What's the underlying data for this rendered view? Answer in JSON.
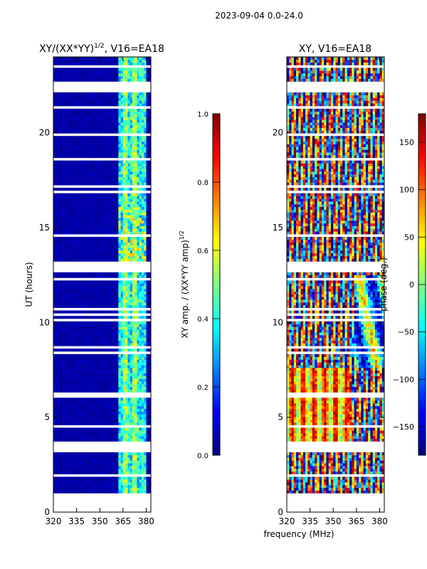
{
  "figure": {
    "suptitle": "2023-09-04 0.0-24.0",
    "xlabel": "frequency (MHz)"
  },
  "colors": {
    "jet": [
      "#00007f",
      "#0000ff",
      "#007fff",
      "#00ffff",
      "#7fff7f",
      "#ffff00",
      "#ff7f00",
      "#ff0000",
      "#7f0000"
    ]
  },
  "chart_data": [
    {
      "type": "heatmap",
      "title": "XY/(XX*YY)",
      "title_sup": "1/2",
      "title_suffix": ", V16=EA18",
      "xlabel": "",
      "ylabel": "UT (hours)",
      "xlim": [
        320,
        383
      ],
      "ylim": [
        0,
        24
      ],
      "xticks": [
        320,
        335,
        350,
        365,
        380
      ],
      "yticks": [
        0,
        5,
        10,
        15,
        20
      ],
      "data_range_hours": [
        1.0,
        24.0
      ],
      "notes": "mostly low amplitude (~0.0) below 362 MHz; higher values 0.2-0.6 in 362-378 MHz band",
      "colorbar": {
        "label": "XY amp. / (XX*YY amp)",
        "label_sup": "1/2",
        "range": [
          0.0,
          1.0
        ],
        "ticks": [
          "0.0",
          "0.2",
          "0.4",
          "0.6",
          "0.8",
          "1.0"
        ]
      }
    },
    {
      "type": "heatmap",
      "title": "XY, V16=EA18",
      "xlabel": "frequency (MHz)",
      "ylabel": "",
      "xlim": [
        320,
        383
      ],
      "ylim": [
        0,
        24
      ],
      "xticks": [
        320,
        335,
        350,
        365,
        380
      ],
      "yticks": [
        0,
        5,
        10,
        15,
        20
      ],
      "data_range_hours": [
        1.0,
        24.0
      ],
      "notes": "phase varies strongly with frequency; vertical banding every ~5 MHz",
      "colorbar": {
        "label": "phase (deg.)",
        "range": [
          -180,
          180
        ],
        "ticks": [
          "−150",
          "−100",
          "−50",
          "0",
          "50",
          "100",
          "150"
        ]
      }
    }
  ]
}
